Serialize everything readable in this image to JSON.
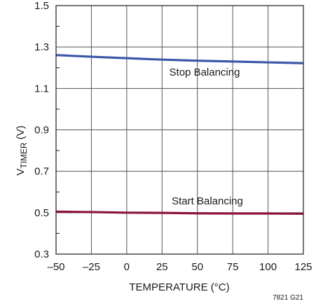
{
  "chart_data": {
    "type": "line",
    "title": "",
    "xlabel": "TEMPERATURE (°C)",
    "ylabel_main": "V",
    "ylabel_sub": "TIMER",
    "ylabel_unit": " (V)",
    "xlim": [
      -50,
      125
    ],
    "ylim": [
      0.3,
      1.5
    ],
    "x_ticks": [
      -50,
      -25,
      0,
      25,
      50,
      75,
      100,
      125
    ],
    "x_tick_labels": [
      "–50",
      "–25",
      "0",
      "25",
      "50",
      "75",
      "100",
      "125"
    ],
    "y_ticks": [
      0.3,
      0.5,
      0.7,
      0.9,
      1.1,
      1.3,
      1.5
    ],
    "y_tick_labels": [
      "0.3",
      "0.5",
      "0.7",
      "0.9",
      "1.1",
      "1.3",
      "1.5"
    ],
    "y_minor_ticks": [
      0.4,
      0.6,
      0.8,
      1.0,
      1.2,
      1.4
    ],
    "grid": true,
    "series": [
      {
        "name": "Stop Balancing",
        "color": "#3a58a8",
        "x": [
          -50,
          -25,
          0,
          25,
          50,
          75,
          100,
          125
        ],
        "y": [
          1.261,
          1.253,
          1.246,
          1.239,
          1.234,
          1.23,
          1.226,
          1.222
        ]
      },
      {
        "name": "Start Balancing",
        "color": "#8c1538",
        "x": [
          -50,
          -25,
          0,
          25,
          50,
          75,
          100,
          125
        ],
        "y": [
          0.505,
          0.503,
          0.5,
          0.499,
          0.497,
          0.496,
          0.496,
          0.495
        ]
      }
    ],
    "annotations": [
      {
        "text": "Stop Balancing",
        "series": 0
      },
      {
        "text": "Start Balancing",
        "series": 1
      }
    ],
    "figure_code": "7821 G21"
  }
}
